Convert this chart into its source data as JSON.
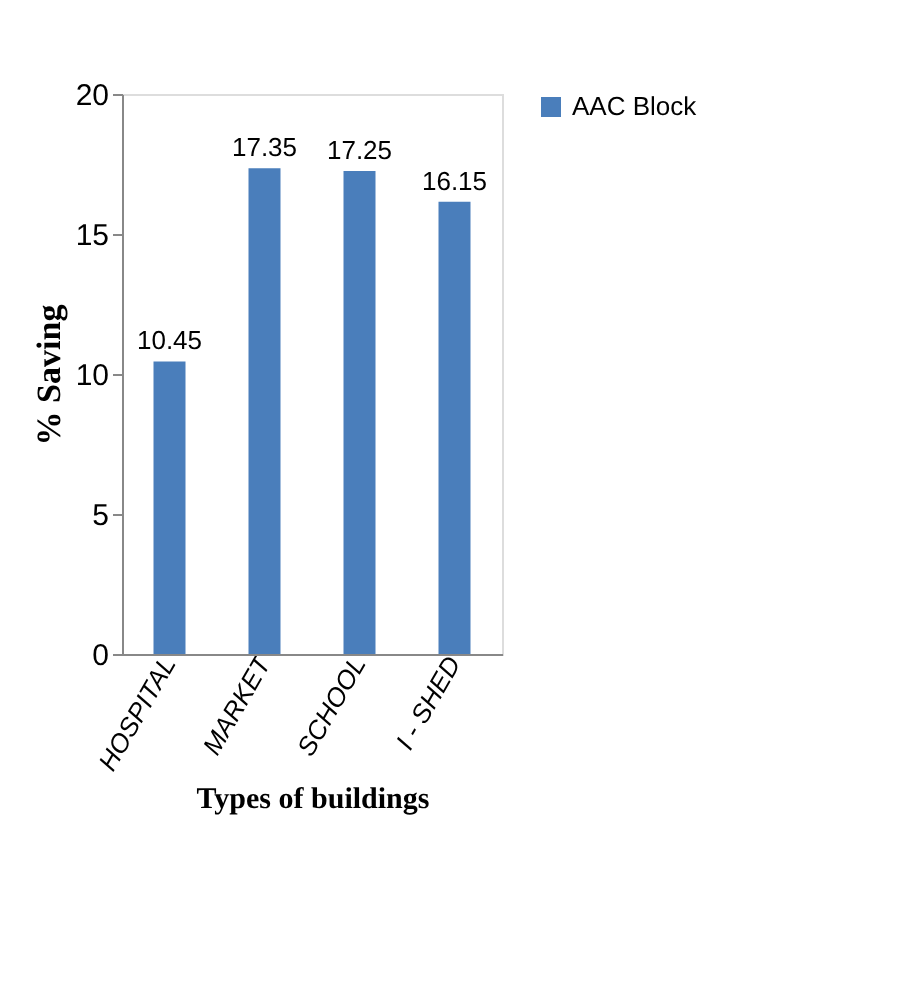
{
  "chart_data": {
    "type": "bar",
    "xlabel": "Types of buildings",
    "ylabel": "% Saving",
    "categories": [
      "HOSPITAL",
      "MARKET",
      "SCHOOL",
      "I - SHED"
    ],
    "series": [
      {
        "name": "AAC Block",
        "color": "#4a7ebb",
        "values": [
          10.45,
          17.35,
          17.25,
          16.15
        ]
      }
    ],
    "ylim": [
      0,
      20
    ],
    "yticks": [
      0,
      5,
      10,
      15,
      20
    ],
    "data_labels": true,
    "legend": "right",
    "grid": false
  }
}
